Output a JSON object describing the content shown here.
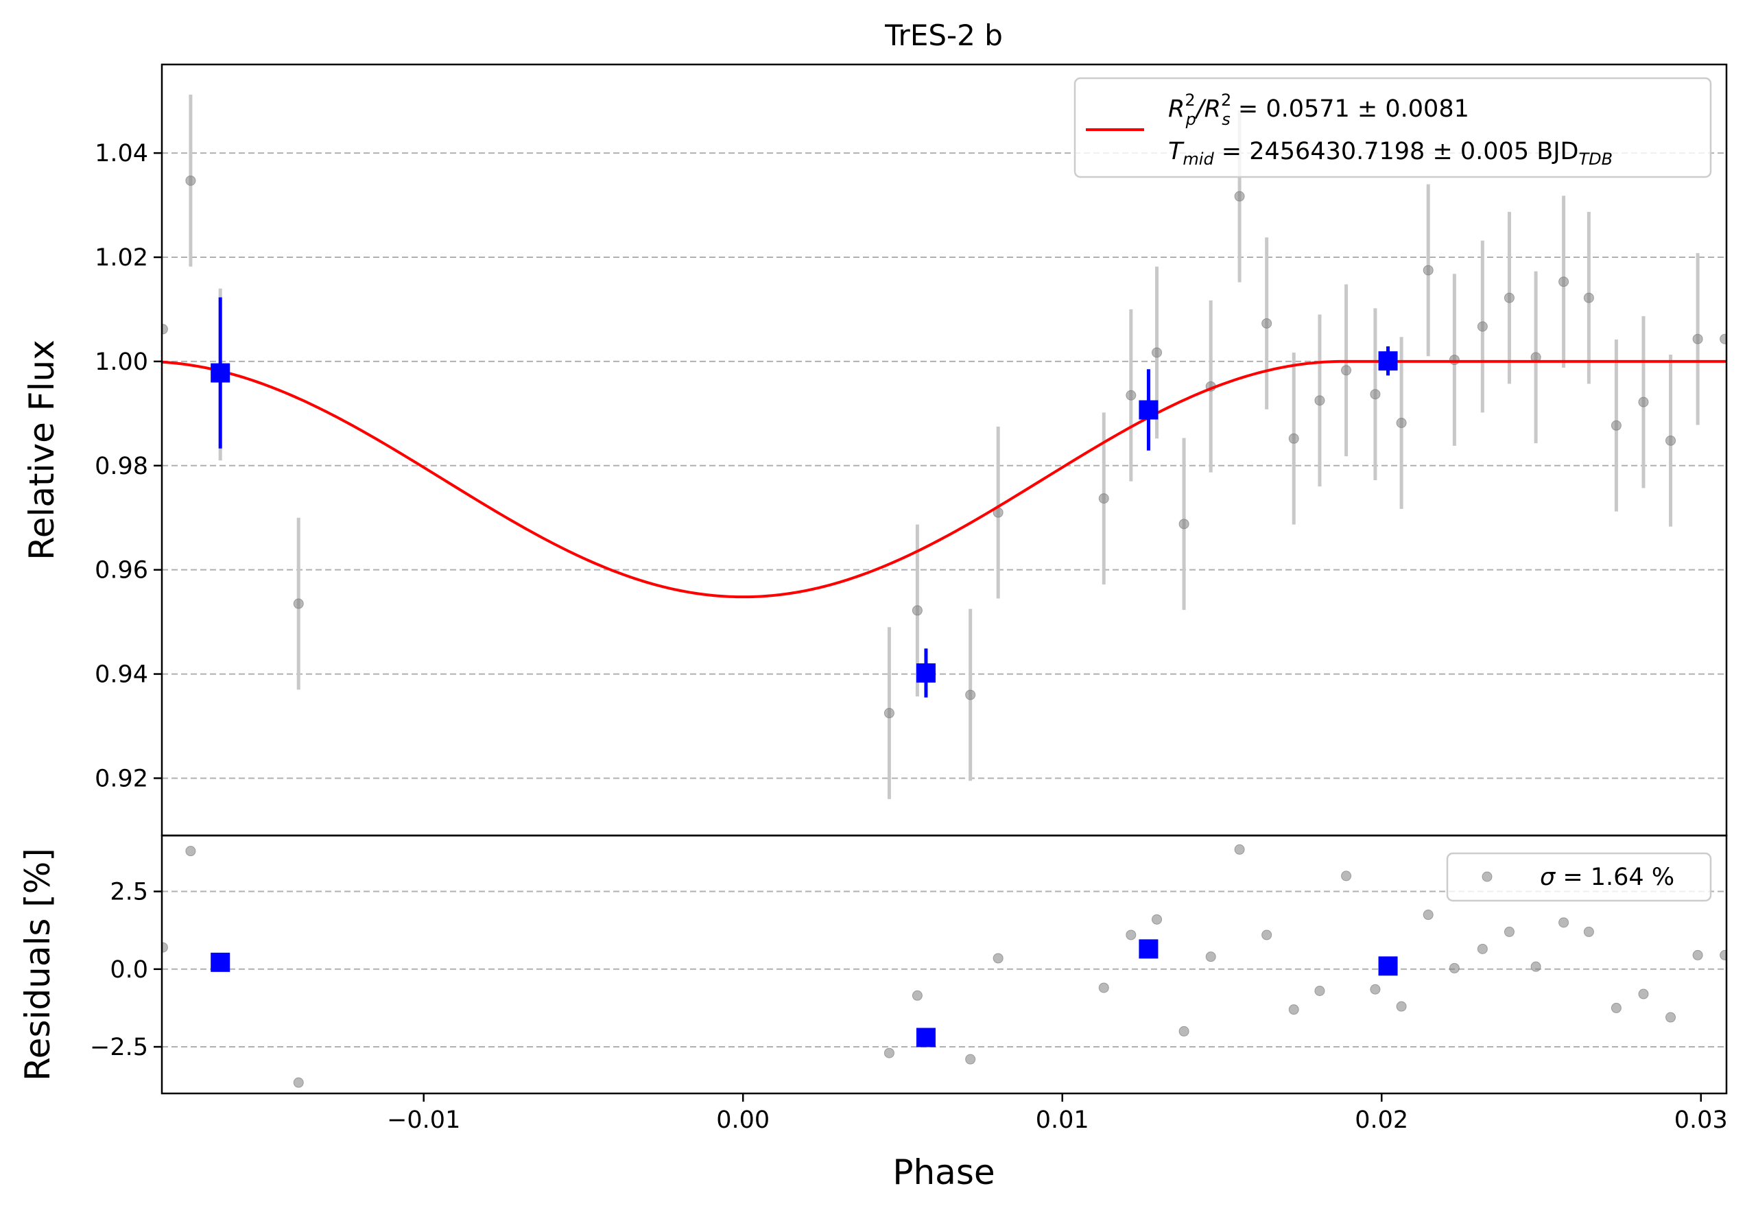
{
  "chart_data": [
    {
      "type": "scatter",
      "title": "TrES-2 b",
      "xlabel": "",
      "ylabel": "Relative Flux",
      "xlim": [
        -0.0182,
        0.0308
      ],
      "ylim": [
        0.909,
        1.057
      ],
      "grid": "y-dashed",
      "legend_position": "top-right",
      "yticks": [
        {
          "value": 0.92,
          "label": "0.92"
        },
        {
          "value": 0.94,
          "label": "0.94"
        },
        {
          "value": 0.96,
          "label": "0.96"
        },
        {
          "value": 0.98,
          "label": "0.98"
        },
        {
          "value": 1.0,
          "label": "1.00"
        },
        {
          "value": 1.02,
          "label": "1.02"
        },
        {
          "value": 1.04,
          "label": "1.04"
        }
      ],
      "legend": {
        "line1": {
          "a": "R",
          "a_sup": "2",
          "a_sub": "p",
          "b": "/R",
          "b_sup": "2",
          "b_sub": "s",
          "rest": " = 0.0571 ± 0.0081"
        },
        "line2": {
          "a": "T",
          "a_sub": "mid",
          "rest": " = 2456430.7198 ± 0.005 BJD",
          "rest_sub": "TDB"
        }
      },
      "colors": {
        "model": "#ff0000",
        "binned": "#0000ff",
        "raw": "#808080",
        "raw_err": "#c8c8c8",
        "grid": "#b0b0b0"
      },
      "series": [
        {
          "kind": "raw",
          "points": [
            {
              "x": -0.01817,
              "y": 1.0062,
              "err": 0.0
            },
            {
              "x": -0.0173,
              "y": 1.0347,
              "err": 0.0165
            },
            {
              "x": -0.01637,
              "y": 0.9975,
              "err": 0.0165
            },
            {
              "x": -0.01392,
              "y": 0.9535,
              "err": 0.0165
            },
            {
              "x": 0.00458,
              "y": 0.9325,
              "err": 0.0165
            },
            {
              "x": 0.00546,
              "y": 0.9522,
              "err": 0.0165
            },
            {
              "x": 0.00712,
              "y": 0.936,
              "err": 0.0165
            },
            {
              "x": 0.00799,
              "y": 0.971,
              "err": 0.0165
            },
            {
              "x": 0.0113,
              "y": 0.9737,
              "err": 0.0165
            },
            {
              "x": 0.01215,
              "y": 0.9935,
              "err": 0.0165
            },
            {
              "x": 0.01296,
              "y": 1.0017,
              "err": 0.0165
            },
            {
              "x": 0.01381,
              "y": 0.9688,
              "err": 0.0165
            },
            {
              "x": 0.01465,
              "y": 0.9952,
              "err": 0.0165
            },
            {
              "x": 0.01555,
              "y": 1.0317,
              "err": 0.0165
            },
            {
              "x": 0.0164,
              "y": 1.0073,
              "err": 0.0165
            },
            {
              "x": 0.01725,
              "y": 0.9852,
              "err": 0.0165
            },
            {
              "x": 0.01806,
              "y": 0.9925,
              "err": 0.0165
            },
            {
              "x": 0.01889,
              "y": 0.9983,
              "err": 0.0165
            },
            {
              "x": 0.0198,
              "y": 0.9937,
              "err": 0.0165
            },
            {
              "x": 0.02062,
              "y": 0.9882,
              "err": 0.0165
            },
            {
              "x": 0.02146,
              "y": 1.0175,
              "err": 0.0165
            },
            {
              "x": 0.02228,
              "y": 1.0003,
              "err": 0.0165
            },
            {
              "x": 0.02316,
              "y": 1.0067,
              "err": 0.0165
            },
            {
              "x": 0.024,
              "y": 1.0122,
              "err": 0.0165
            },
            {
              "x": 0.02483,
              "y": 1.0008,
              "err": 0.0165
            },
            {
              "x": 0.0257,
              "y": 1.0153,
              "err": 0.0165
            },
            {
              "x": 0.02649,
              "y": 1.0122,
              "err": 0.0165
            },
            {
              "x": 0.02735,
              "y": 0.9877,
              "err": 0.0165
            },
            {
              "x": 0.0282,
              "y": 0.9922,
              "err": 0.0165
            },
            {
              "x": 0.02905,
              "y": 0.9848,
              "err": 0.0165
            },
            {
              "x": 0.0299,
              "y": 1.0043,
              "err": 0.0165
            },
            {
              "x": 0.03075,
              "y": 1.0043,
              "err": 0.0
            }
          ]
        },
        {
          "kind": "binned",
          "points": [
            {
              "x": -0.01637,
              "y": 0.9978,
              "err": 0.0145
            },
            {
              "x": 0.00573,
              "y": 0.9402,
              "err": 0.0047
            },
            {
              "x": 0.0127,
              "y": 0.9907,
              "err": 0.0078
            },
            {
              "x": 0.0202,
              "y": 1.0001,
              "err": 0.0028
            }
          ]
        },
        {
          "kind": "model",
          "depth": 0.0452,
          "egress_phase": 0.0188,
          "baseline": 1.0
        }
      ]
    },
    {
      "type": "scatter",
      "title": "",
      "xlabel": "Phase",
      "ylabel": "Residuals [%]",
      "xlim": [
        -0.0182,
        0.0308
      ],
      "ylim": [
        -4.0,
        4.3
      ],
      "grid": "y-dashed",
      "legend_position": "top-right",
      "yticks": [
        {
          "value": -2.5,
          "label": "−2.5"
        },
        {
          "value": 0.0,
          "label": "0.0"
        },
        {
          "value": 2.5,
          "label": "2.5"
        }
      ],
      "xticks": [
        {
          "value": -0.01,
          "label": "−0.01"
        },
        {
          "value": 0.0,
          "label": "0.00"
        },
        {
          "value": 0.01,
          "label": "0.01"
        },
        {
          "value": 0.02,
          "label": "0.02"
        },
        {
          "value": 0.03,
          "label": "0.03"
        }
      ],
      "legend": {
        "sigma": "σ",
        "rest": " = 1.64 %"
      },
      "series": [
        {
          "kind": "raw",
          "points": [
            {
              "x": -0.01817,
              "y": 0.7
            },
            {
              "x": -0.0173,
              "y": 3.8
            },
            {
              "x": -0.01392,
              "y": -3.65
            },
            {
              "x": 0.00458,
              "y": -2.7
            },
            {
              "x": 0.00546,
              "y": -0.85
            },
            {
              "x": 0.00712,
              "y": -2.9
            },
            {
              "x": 0.00799,
              "y": 0.35
            },
            {
              "x": 0.0113,
              "y": -0.6
            },
            {
              "x": 0.01215,
              "y": 1.1
            },
            {
              "x": 0.01296,
              "y": 1.6
            },
            {
              "x": 0.01381,
              "y": -2.0
            },
            {
              "x": 0.01465,
              "y": 0.4
            },
            {
              "x": 0.01555,
              "y": 3.85
            },
            {
              "x": 0.0164,
              "y": 1.1
            },
            {
              "x": 0.01725,
              "y": -1.3
            },
            {
              "x": 0.01806,
              "y": -0.7
            },
            {
              "x": 0.01889,
              "y": 3.0
            },
            {
              "x": 0.0198,
              "y": -0.65
            },
            {
              "x": 0.02062,
              "y": -1.2
            },
            {
              "x": 0.02146,
              "y": 1.75
            },
            {
              "x": 0.02228,
              "y": 0.03
            },
            {
              "x": 0.02316,
              "y": 0.65
            },
            {
              "x": 0.024,
              "y": 1.2
            },
            {
              "x": 0.02483,
              "y": 0.08
            },
            {
              "x": 0.0257,
              "y": 1.5
            },
            {
              "x": 0.02649,
              "y": 1.2
            },
            {
              "x": 0.02735,
              "y": -1.25
            },
            {
              "x": 0.0282,
              "y": -0.8
            },
            {
              "x": 0.02905,
              "y": -1.55
            },
            {
              "x": 0.0299,
              "y": 0.45
            },
            {
              "x": 0.03075,
              "y": 0.45
            }
          ]
        },
        {
          "kind": "binned",
          "points": [
            {
              "x": -0.01637,
              "y": 0.22
            },
            {
              "x": 0.00573,
              "y": -2.2
            },
            {
              "x": 0.0127,
              "y": 0.65
            },
            {
              "x": 0.0202,
              "y": 0.1
            }
          ]
        }
      ]
    }
  ]
}
